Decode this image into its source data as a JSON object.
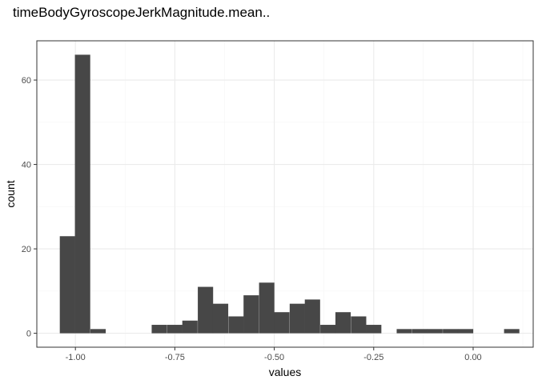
{
  "chart_data": {
    "type": "bar",
    "title": "timeBodyGyroscopeJerkMagnitude.mean..",
    "xlabel": "values",
    "ylabel": "count",
    "xlim": [
      -1.097,
      0.151
    ],
    "ylim": [
      -3.3,
      69.3
    ],
    "x_ticks": [
      -1.0,
      -0.75,
      -0.5,
      -0.25,
      0.0
    ],
    "x_tick_labels": [
      "-1.00",
      "-0.75",
      "-0.50",
      "-0.25",
      "0.00"
    ],
    "y_ticks": [
      0,
      20,
      40,
      60
    ],
    "y_tick_labels": [
      "0",
      "20",
      "40",
      "60"
    ],
    "grid": true,
    "bin_width": 0.0385,
    "bins": [
      {
        "x": -1.02,
        "count": 23
      },
      {
        "x": -0.982,
        "count": 66
      },
      {
        "x": -0.943,
        "count": 1
      },
      {
        "x": -0.904,
        "count": 0
      },
      {
        "x": -0.866,
        "count": 0
      },
      {
        "x": -0.827,
        "count": 0
      },
      {
        "x": -0.789,
        "count": 2
      },
      {
        "x": -0.75,
        "count": 2
      },
      {
        "x": -0.712,
        "count": 3
      },
      {
        "x": -0.673,
        "count": 11
      },
      {
        "x": -0.635,
        "count": 7
      },
      {
        "x": -0.596,
        "count": 4
      },
      {
        "x": -0.558,
        "count": 9
      },
      {
        "x": -0.519,
        "count": 12
      },
      {
        "x": -0.481,
        "count": 5
      },
      {
        "x": -0.442,
        "count": 7
      },
      {
        "x": -0.404,
        "count": 8
      },
      {
        "x": -0.365,
        "count": 2
      },
      {
        "x": -0.327,
        "count": 5
      },
      {
        "x": -0.288,
        "count": 4
      },
      {
        "x": -0.25,
        "count": 2
      },
      {
        "x": -0.211,
        "count": 0
      },
      {
        "x": -0.173,
        "count": 1
      },
      {
        "x": -0.134,
        "count": 1
      },
      {
        "x": -0.096,
        "count": 1
      },
      {
        "x": -0.057,
        "count": 1
      },
      {
        "x": -0.019,
        "count": 1
      },
      {
        "x": 0.02,
        "count": 0
      },
      {
        "x": 0.058,
        "count": 0
      },
      {
        "x": 0.097,
        "count": 1
      }
    ],
    "colors": {
      "bar": "#474747",
      "panel_border": "#333333",
      "grid_major": "#ebebeb",
      "grid_minor": "#f5f5f5",
      "tick": "#333333"
    }
  }
}
